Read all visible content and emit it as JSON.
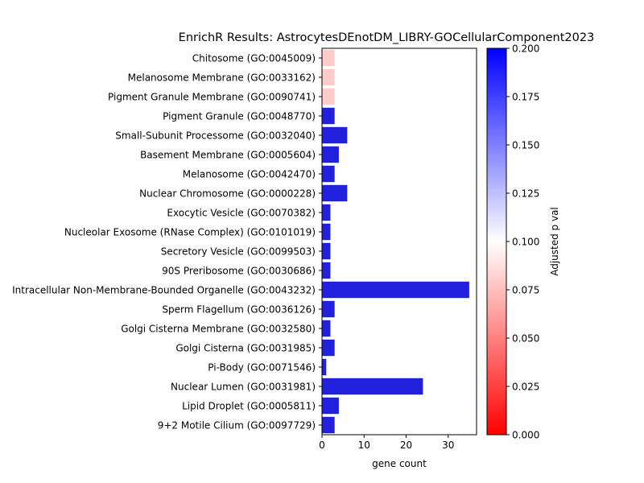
{
  "chart_data": {
    "type": "bar",
    "orientation": "horizontal",
    "title": "EnrichR Results: AstrocytesDEnotDM_LIBRY-GOCellularComponent2023",
    "xlabel": "gene count",
    "ylabel": "",
    "xlim": [
      0,
      36.75
    ],
    "xticks": [
      0,
      10,
      20,
      30
    ],
    "categories": [
      "Chitosome (GO:0045009)",
      "Melanosome Membrane (GO:0033162)",
      "Pigment Granule Membrane (GO:0090741)",
      "Pigment Granule (GO:0048770)",
      "Small-Subunit Processome (GO:0032040)",
      "Basement Membrane (GO:0005604)",
      "Melanosome (GO:0042470)",
      "Nuclear Chromosome (GO:0000228)",
      "Exocytic Vesicle (GO:0070382)",
      "Nucleolar Exosome (RNase Complex) (GO:0101019)",
      "Secretory Vesicle (GO:0099503)",
      "90S Preribosome (GO:0030686)",
      "Intracellular Non-Membrane-Bounded Organelle (GO:0043232)",
      "Sperm Flagellum (GO:0036126)",
      "Golgi Cisterna Membrane (GO:0032580)",
      "Golgi Cisterna (GO:0031985)",
      "Pi-Body (GO:0071546)",
      "Nuclear Lumen (GO:0031981)",
      "Lipid Droplet (GO:0005811)",
      "9+2 Motile Cilium (GO:0097729)"
    ],
    "values": [
      3,
      3,
      3,
      3,
      6,
      4,
      3,
      6,
      2,
      2,
      2,
      2,
      35,
      3,
      2,
      3,
      1,
      24,
      4,
      3
    ],
    "adjusted_p": [
      0.08,
      0.08,
      0.08,
      0.2,
      0.2,
      0.2,
      0.2,
      0.2,
      0.2,
      0.2,
      0.2,
      0.2,
      0.2,
      0.2,
      0.2,
      0.2,
      0.2,
      0.2,
      0.2,
      0.2
    ],
    "colorbar": {
      "label": "Adjusted p val",
      "range": [
        0.0,
        0.2
      ],
      "ticks": [
        "0.000",
        "0.025",
        "0.050",
        "0.075",
        "0.100",
        "0.125",
        "0.150",
        "0.175",
        "0.200"
      ],
      "colormap": "bwr_r",
      "low_color": "#ff0000",
      "mid_color": "#ffffff",
      "high_color": "#0000ff"
    },
    "grid": false,
    "legend": "none"
  }
}
